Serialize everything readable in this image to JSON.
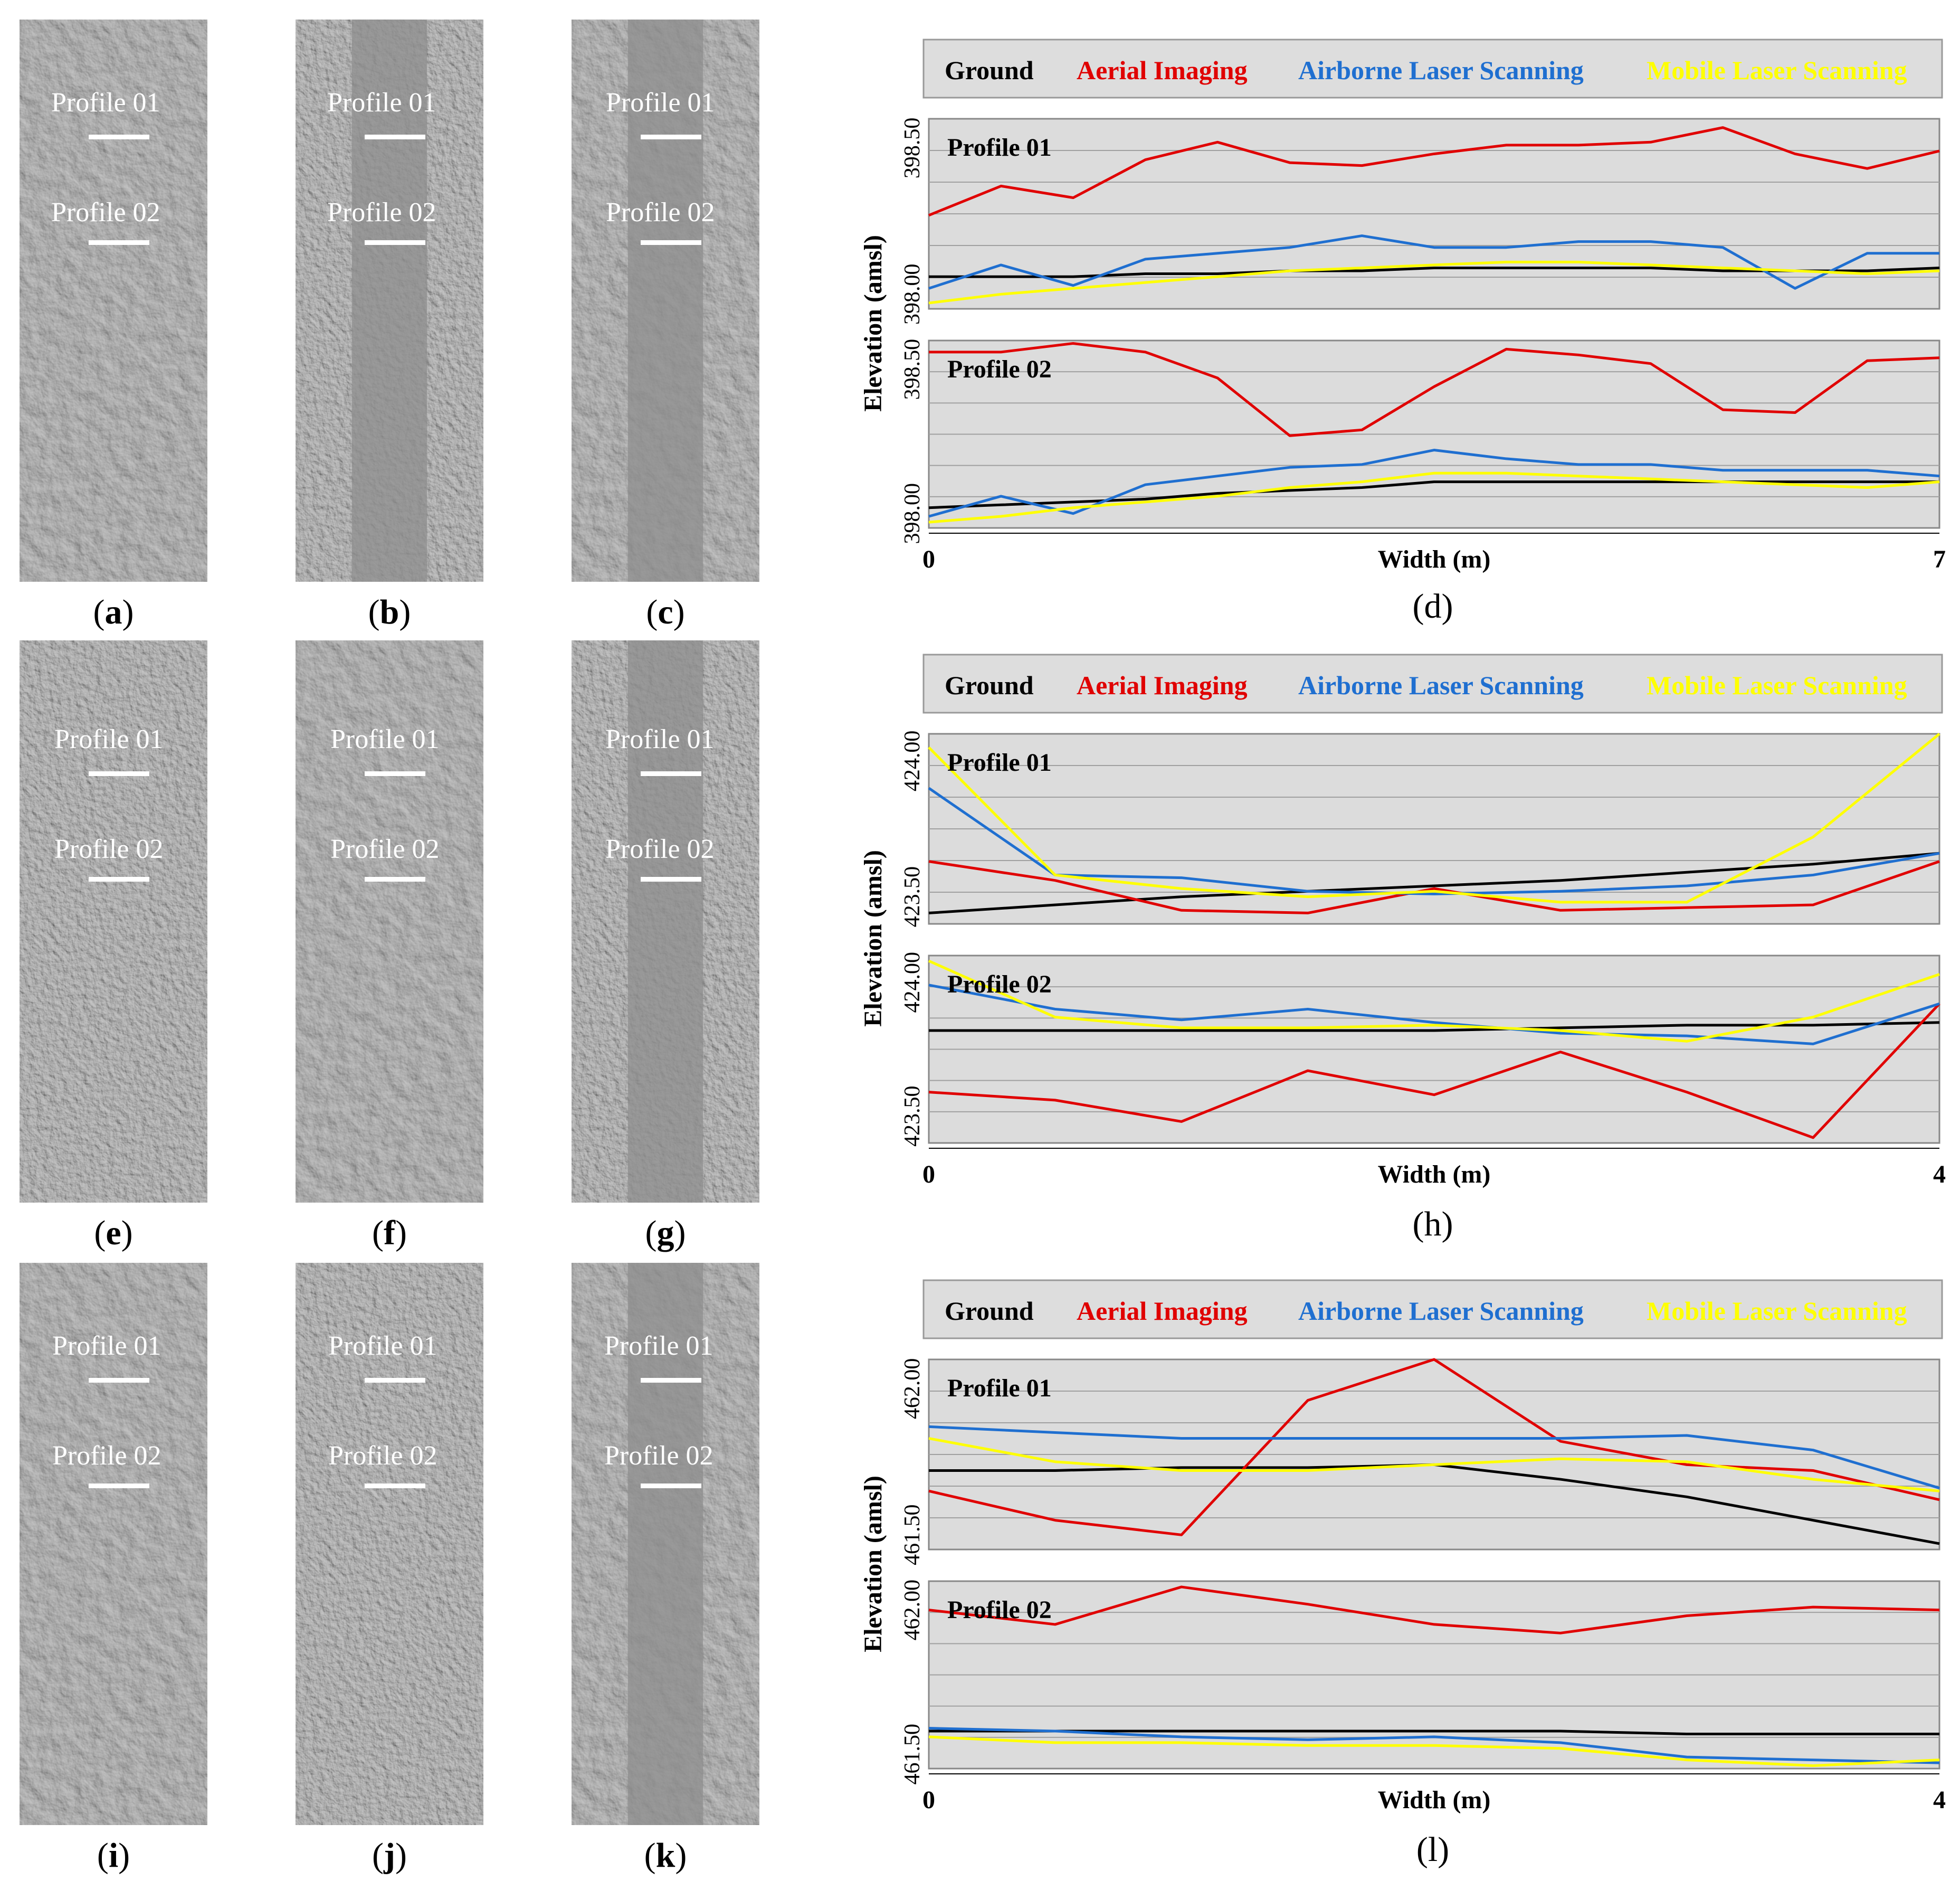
{
  "panels": [
    {
      "caption": "a",
      "profiles": [
        "Profile 01",
        "Profile 02"
      ]
    },
    {
      "caption": "b",
      "profiles": [
        "Profile 01",
        "Profile 02"
      ]
    },
    {
      "caption": "c",
      "profiles": [
        "Profile 01",
        "Profile 02"
      ]
    },
    {
      "caption": "e",
      "profiles": [
        "Profile 01",
        "Profile 02"
      ]
    },
    {
      "caption": "f",
      "profiles": [
        "Profile 01",
        "Profile 02"
      ]
    },
    {
      "caption": "g",
      "profiles": [
        "Profile 01",
        "Profile 02"
      ]
    },
    {
      "caption": "i",
      "profiles": [
        "Profile 01",
        "Profile 02"
      ]
    },
    {
      "caption": "j",
      "profiles": [
        "Profile 01",
        "Profile 02"
      ]
    },
    {
      "caption": "k",
      "profiles": [
        "Profile 01",
        "Profile 02"
      ]
    }
  ],
  "legend": [
    {
      "name": "Ground",
      "color": "#000000"
    },
    {
      "name": "Aerial Imaging",
      "color": "#e00000"
    },
    {
      "name": "Airborne Laser Scanning",
      "color": "#1f6fd0"
    },
    {
      "name": "Mobile Laser Scanning",
      "color": "#ffff00"
    }
  ],
  "chart_data": [
    {
      "type": "line",
      "caption": "d",
      "xlabel": "Width (m)",
      "ylabel": "Elevation (amsl)",
      "xlim": [
        0,
        7
      ],
      "x_tick_labels": [
        "0",
        "7"
      ],
      "subplots": [
        {
          "label": "Profile 01",
          "ylim": [
            397.95,
            398.6
          ],
          "ytick_values": [
            398.0,
            398.5
          ],
          "ytick_labels": [
            "398.00",
            "398.50"
          ],
          "x": [
            0,
            0.5,
            1,
            1.5,
            2,
            2.5,
            3,
            3.5,
            4,
            4.5,
            5,
            5.5,
            6,
            6.5,
            7
          ],
          "series": [
            {
              "name": "Ground",
              "values": [
                398.06,
                398.06,
                398.06,
                398.07,
                398.07,
                398.08,
                398.08,
                398.09,
                398.09,
                398.09,
                398.09,
                398.08,
                398.08,
                398.08,
                398.09
              ]
            },
            {
              "name": "Aerial Imaging",
              "values": [
                398.27,
                398.37,
                398.33,
                398.46,
                398.52,
                398.45,
                398.44,
                398.48,
                398.51,
                398.51,
                398.52,
                398.57,
                398.48,
                398.43,
                398.49
              ]
            },
            {
              "name": "Airborne Laser Scanning",
              "values": [
                398.02,
                398.1,
                398.03,
                398.12,
                398.14,
                398.16,
                398.2,
                398.16,
                398.16,
                398.18,
                398.18,
                398.16,
                398.02,
                398.14,
                398.14
              ]
            },
            {
              "name": "Mobile Laser Scanning",
              "values": [
                397.97,
                398.0,
                398.02,
                398.04,
                398.06,
                398.08,
                398.09,
                398.1,
                398.11,
                398.11,
                398.1,
                398.09,
                398.08,
                398.07,
                398.08
              ]
            }
          ]
        },
        {
          "label": "Profile 02",
          "ylim": [
            397.95,
            398.6
          ],
          "ytick_values": [
            398.0,
            398.5
          ],
          "ytick_labels": [
            "398.00",
            "398.50"
          ],
          "x": [
            0,
            0.5,
            1,
            1.5,
            2,
            2.5,
            3,
            3.5,
            4,
            4.5,
            5,
            5.5,
            6,
            6.5,
            7
          ],
          "series": [
            {
              "name": "Ground",
              "values": [
                398.02,
                398.03,
                398.04,
                398.05,
                398.07,
                398.08,
                398.09,
                398.11,
                398.11,
                398.11,
                398.11,
                398.11,
                398.11,
                398.11,
                398.11
              ]
            },
            {
              "name": "Aerial Imaging",
              "values": [
                398.56,
                398.56,
                398.59,
                398.56,
                398.47,
                398.27,
                398.29,
                398.44,
                398.57,
                398.55,
                398.52,
                398.36,
                398.35,
                398.53,
                398.54
              ]
            },
            {
              "name": "Airborne Laser Scanning",
              "values": [
                397.99,
                398.06,
                398.0,
                398.1,
                398.13,
                398.16,
                398.17,
                398.22,
                398.19,
                398.17,
                398.17,
                398.15,
                398.15,
                398.15,
                398.13
              ]
            },
            {
              "name": "Mobile Laser Scanning",
              "values": [
                397.97,
                397.99,
                398.02,
                398.04,
                398.06,
                398.09,
                398.11,
                398.14,
                398.14,
                398.13,
                398.12,
                398.11,
                398.1,
                398.09,
                398.11
              ]
            }
          ]
        }
      ]
    },
    {
      "type": "line",
      "caption": "h",
      "xlabel": "Width (m)",
      "ylabel": "Elevation (amsl)",
      "xlim": [
        0,
        4
      ],
      "x_tick_labels": [
        "0",
        "4"
      ],
      "subplots": [
        {
          "label": "Profile 01",
          "ylim": [
            423.4,
            424.1
          ],
          "ytick_values": [
            423.5,
            424.0
          ],
          "ytick_labels": [
            "423.50",
            "424.00"
          ],
          "x": [
            0,
            0.5,
            1,
            1.5,
            2,
            2.5,
            3,
            3.5,
            4
          ],
          "series": [
            {
              "name": "Ground",
              "values": [
                423.44,
                423.47,
                423.5,
                423.52,
                423.54,
                423.56,
                423.59,
                423.62,
                423.66
              ]
            },
            {
              "name": "Aerial Imaging",
              "values": [
                423.63,
                423.56,
                423.45,
                423.44,
                423.53,
                423.45,
                423.46,
                423.47,
                423.63
              ]
            },
            {
              "name": "Airborne Laser Scanning",
              "values": [
                423.9,
                423.58,
                423.57,
                423.52,
                423.51,
                423.52,
                423.54,
                423.58,
                423.66
              ]
            },
            {
              "name": "Mobile Laser Scanning",
              "values": [
                424.05,
                423.58,
                423.53,
                423.5,
                423.52,
                423.48,
                423.48,
                423.72,
                424.1
              ]
            }
          ]
        },
        {
          "label": "Profile 02",
          "ylim": [
            423.4,
            424.1
          ],
          "ytick_values": [
            423.5,
            424.0
          ],
          "ytick_labels": [
            "423.50",
            "424.00"
          ],
          "x": [
            0,
            0.5,
            1,
            1.5,
            2,
            2.5,
            3,
            3.5,
            4
          ],
          "series": [
            {
              "name": "Ground",
              "values": [
                423.82,
                423.82,
                423.82,
                423.82,
                423.82,
                423.83,
                423.84,
                423.84,
                423.85
              ]
            },
            {
              "name": "Aerial Imaging",
              "values": [
                423.59,
                423.56,
                423.48,
                423.67,
                423.58,
                423.74,
                423.59,
                423.42,
                423.92
              ]
            },
            {
              "name": "Airborne Laser Scanning",
              "values": [
                423.99,
                423.9,
                423.86,
                423.9,
                423.85,
                423.81,
                423.8,
                423.77,
                423.92
              ]
            },
            {
              "name": "Mobile Laser Scanning",
              "values": [
                424.08,
                423.87,
                423.83,
                423.83,
                423.84,
                423.82,
                423.78,
                423.87,
                424.03
              ]
            }
          ]
        }
      ]
    },
    {
      "type": "line",
      "caption": "l",
      "xlabel": "Width (m)",
      "ylabel": "Elevation (amsl)",
      "xlim": [
        0,
        4
      ],
      "x_tick_labels": [
        "0",
        "4"
      ],
      "subplots": [
        {
          "label": "Profile 01",
          "ylim": [
            461.45,
            462.1
          ],
          "ytick_values": [
            461.5,
            462.0
          ],
          "ytick_labels": [
            "461.50",
            "462.00"
          ],
          "x": [
            0,
            0.5,
            1,
            1.5,
            2,
            2.5,
            3,
            3.5,
            4
          ],
          "series": [
            {
              "name": "Ground",
              "values": [
                461.72,
                461.72,
                461.73,
                461.73,
                461.74,
                461.69,
                461.63,
                461.55,
                461.47
              ]
            },
            {
              "name": "Aerial Imaging",
              "values": [
                461.65,
                461.55,
                461.5,
                461.96,
                462.1,
                461.82,
                461.74,
                461.72,
                461.62
              ]
            },
            {
              "name": "Airborne Laser Scanning",
              "values": [
                461.87,
                461.85,
                461.83,
                461.83,
                461.83,
                461.83,
                461.84,
                461.79,
                461.66
              ]
            },
            {
              "name": "Mobile Laser Scanning",
              "values": [
                461.83,
                461.75,
                461.72,
                461.72,
                461.74,
                461.76,
                461.75,
                461.69,
                461.65
              ]
            }
          ]
        },
        {
          "label": "Profile 02",
          "ylim": [
            461.45,
            462.1
          ],
          "ytick_values": [
            461.5,
            462.0
          ],
          "ytick_labels": [
            "461.50",
            "462.00"
          ],
          "x": [
            0,
            0.5,
            1,
            1.5,
            2,
            2.5,
            3,
            3.5,
            4
          ],
          "series": [
            {
              "name": "Ground",
              "values": [
                461.58,
                461.58,
                461.58,
                461.58,
                461.58,
                461.58,
                461.57,
                461.57,
                461.57
              ]
            },
            {
              "name": "Aerial Imaging",
              "values": [
                462.0,
                461.95,
                462.08,
                462.02,
                461.95,
                461.92,
                461.98,
                462.01,
                462.0
              ]
            },
            {
              "name": "Airborne Laser Scanning",
              "values": [
                461.59,
                461.58,
                461.56,
                461.55,
                461.56,
                461.54,
                461.49,
                461.48,
                461.47
              ]
            },
            {
              "name": "Mobile Laser Scanning",
              "values": [
                461.56,
                461.54,
                461.54,
                461.53,
                461.53,
                461.52,
                461.48,
                461.46,
                461.48
              ]
            }
          ]
        }
      ]
    }
  ]
}
